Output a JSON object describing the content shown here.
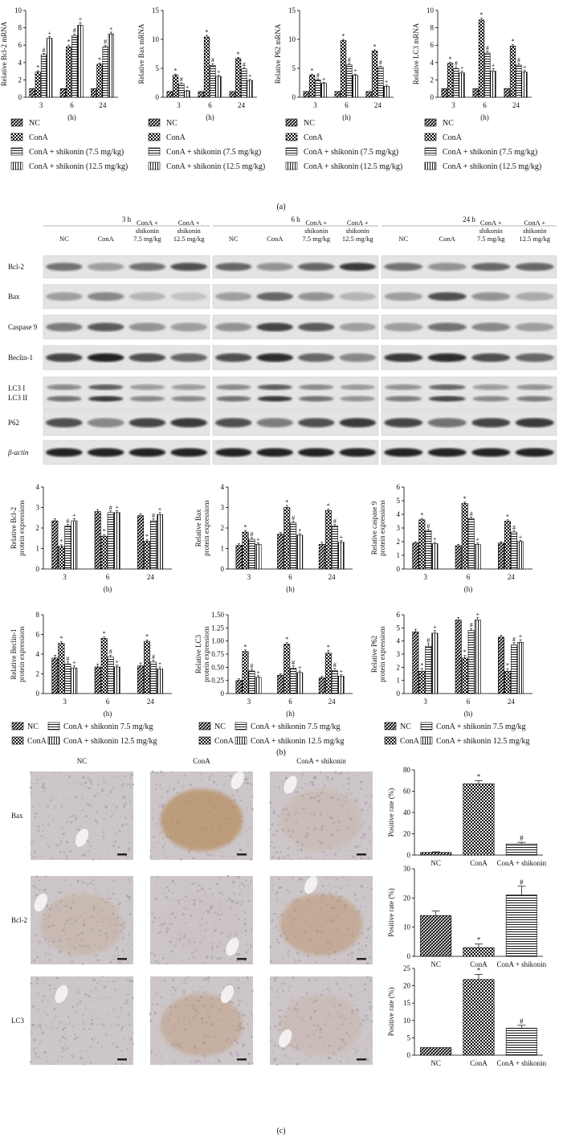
{
  "legend4": [
    "NC",
    "ConA",
    "ConA + shikonin (7.5 mg/kg)",
    "ConA + shikonin (12.5 mg/kg)"
  ],
  "legend4b": [
    "NC",
    "ConA",
    "ConA + shikonin 7.5 mg/kg",
    "ConA + shikonin 12.5 mg/kg"
  ],
  "panel_labels": {
    "a": "(a)",
    "b": "(b)",
    "c": "(c)"
  },
  "western": {
    "time_headers": [
      "3 h",
      "6 h",
      "24 h"
    ],
    "lanes": [
      "NC",
      "ConA",
      "ConA +\nshikonin\n7.5 mg/kg",
      "ConA +\nshikonin\n12.5 mg/kg"
    ],
    "rows": [
      "Bcl-2",
      "Bax",
      "Caspase 9",
      "Beclin-1",
      "LC3 I\nLC3 II",
      "P62",
      "β-actin"
    ]
  },
  "ihc": {
    "columns": [
      "NC",
      "ConA",
      "ConA + shikonin"
    ],
    "rows": [
      "Bax",
      "Bcl-2",
      "LC3"
    ]
  },
  "chart_data": [
    {
      "id": "bcl2_mrna",
      "type": "bar",
      "ylabel": "Relative Bcl-2 mRNA",
      "xlabel": "(h)",
      "categories": [
        "3",
        "6",
        "24"
      ],
      "ylim": [
        0,
        10
      ],
      "yticks": [
        0,
        2,
        4,
        6,
        8,
        10
      ],
      "series": [
        {
          "name": "NC",
          "values": [
            1,
            1,
            1
          ],
          "err": [
            0,
            0,
            0
          ]
        },
        {
          "name": "ConA",
          "values": [
            2.9,
            5.8,
            3.8
          ],
          "err": [
            0.15,
            0.2,
            0.15
          ],
          "sig": "*"
        },
        {
          "name": "ConA + shikonin (7.5 mg/kg)",
          "values": [
            4.9,
            7.1,
            5.8
          ],
          "err": [
            0.15,
            0.2,
            0.2
          ],
          "sig": "#"
        },
        {
          "name": "ConA + shikonin (12.5 mg/kg)",
          "values": [
            6.8,
            8.3,
            7.3
          ],
          "err": [
            0.2,
            0.3,
            0.2
          ],
          "sig": "+"
        }
      ]
    },
    {
      "id": "bax_mrna",
      "type": "bar",
      "ylabel": "Relative Bax mRNA",
      "xlabel": "(h)",
      "categories": [
        "3",
        "6",
        "24"
      ],
      "ylim": [
        0,
        15
      ],
      "yticks": [
        0,
        5,
        10,
        15
      ],
      "series": [
        {
          "name": "NC",
          "values": [
            1,
            1,
            1
          ],
          "err": [
            0,
            0,
            0
          ]
        },
        {
          "name": "ConA",
          "values": [
            3.8,
            10.4,
            6.7
          ],
          "err": [
            0.2,
            0.3,
            0.2
          ],
          "sig": "*"
        },
        {
          "name": "ConA + shikonin (7.5 mg/kg)",
          "values": [
            2.3,
            5.5,
            4.9
          ],
          "err": [
            0.2,
            0.3,
            0.2
          ],
          "sig": "#"
        },
        {
          "name": "ConA + shikonin (12.5 mg/kg)",
          "values": [
            1.1,
            3.6,
            2.9
          ],
          "err": [
            0.1,
            0.2,
            0.2
          ],
          "sig": "+"
        }
      ]
    },
    {
      "id": "p62_mrna",
      "type": "bar",
      "ylabel": "Relative P62 mRNA",
      "xlabel": "(h)",
      "categories": [
        "3",
        "6",
        "24"
      ],
      "ylim": [
        0,
        15
      ],
      "yticks": [
        0,
        5,
        10,
        15
      ],
      "series": [
        {
          "name": "NC",
          "values": [
            1,
            1,
            1
          ],
          "err": [
            0,
            0,
            0
          ]
        },
        {
          "name": "ConA",
          "values": [
            3.8,
            9.8,
            8.0
          ],
          "err": [
            0.2,
            0.2,
            0.2
          ],
          "sig": "*"
        },
        {
          "name": "ConA + shikonin (7.5 mg/kg)",
          "values": [
            3.0,
            5.6,
            5.2
          ],
          "err": [
            0.2,
            0.3,
            0.2
          ],
          "sig": "#"
        },
        {
          "name": "ConA + shikonin (12.5 mg/kg)",
          "values": [
            2.4,
            3.8,
            1.9
          ],
          "err": [
            0.2,
            0.2,
            0.2
          ],
          "sig": "+"
        }
      ]
    },
    {
      "id": "lc3_mrna",
      "type": "bar",
      "ylabel": "Relative LC3 mRNA",
      "xlabel": "(h)",
      "categories": [
        "3",
        "6",
        "24"
      ],
      "ylim": [
        0,
        10
      ],
      "yticks": [
        0,
        2,
        4,
        6,
        8,
        10
      ],
      "series": [
        {
          "name": "NC",
          "values": [
            1,
            1,
            1
          ],
          "err": [
            0,
            0,
            0
          ]
        },
        {
          "name": "ConA",
          "values": [
            3.9,
            8.9,
            5.9
          ],
          "err": [
            0.15,
            0.2,
            0.15
          ],
          "sig": "*"
        },
        {
          "name": "ConA + shikonin (7.5 mg/kg)",
          "values": [
            3.3,
            5.1,
            3.7
          ],
          "err": [
            0.2,
            0.2,
            0.2
          ],
          "sig": "#"
        },
        {
          "name": "ConA + shikonin (12.5 mg/kg)",
          "values": [
            2.8,
            3.0,
            2.9
          ],
          "err": [
            0.2,
            0.3,
            0.2
          ],
          "sig": "+"
        }
      ]
    },
    {
      "id": "bcl2_prot",
      "type": "bar",
      "ylabel": "Relative Bcl-2\nprotein expressions",
      "xlabel": "(h)",
      "categories": [
        "3",
        "6",
        "24"
      ],
      "ylim": [
        0,
        4
      ],
      "yticks": [
        0,
        1,
        2,
        3,
        4
      ],
      "series": [
        {
          "name": "NC",
          "values": [
            2.35,
            2.8,
            2.6
          ],
          "err": [
            0.1,
            0.1,
            0.1
          ]
        },
        {
          "name": "ConA",
          "values": [
            1.1,
            1.6,
            1.35
          ],
          "err": [
            0.08,
            0.08,
            0.08
          ],
          "sig": "*"
        },
        {
          "name": "ConA + shikonin 7.5 mg/kg",
          "values": [
            2.1,
            2.75,
            2.35
          ],
          "err": [
            0.08,
            0.08,
            0.1
          ],
          "sig": "#"
        },
        {
          "name": "ConA + shikonin 12.5 mg/kg",
          "values": [
            2.35,
            2.75,
            2.65
          ],
          "err": [
            0.1,
            0.1,
            0.1
          ],
          "sig": "+"
        }
      ]
    },
    {
      "id": "bax_prot",
      "type": "bar",
      "ylabel": "Relative Bax\nprotein expressions",
      "xlabel": "(h)",
      "categories": [
        "3",
        "6",
        "24"
      ],
      "ylim": [
        0,
        4
      ],
      "yticks": [
        0,
        1,
        2,
        3,
        4
      ],
      "series": [
        {
          "name": "NC",
          "values": [
            1.15,
            1.7,
            1.2
          ],
          "err": [
            0.08,
            0.08,
            0.1
          ]
        },
        {
          "name": "ConA",
          "values": [
            1.8,
            3.0,
            2.85
          ],
          "err": [
            0.08,
            0.1,
            0.08
          ],
          "sig": "*"
        },
        {
          "name": "ConA + shikonin 7.5 mg/kg",
          "values": [
            1.45,
            2.25,
            2.1
          ],
          "err": [
            0.08,
            0.08,
            0.08
          ],
          "sig": "#"
        },
        {
          "name": "ConA + shikonin 12.5 mg/kg",
          "values": [
            1.2,
            1.65,
            1.3
          ],
          "err": [
            0.08,
            0.08,
            0.1
          ],
          "sig": "+"
        }
      ]
    },
    {
      "id": "casp9_prot",
      "type": "bar",
      "ylabel": "Relative caspase 9\nprotein expressions",
      "xlabel": "(h)",
      "categories": [
        "3",
        "6",
        "24"
      ],
      "ylim": [
        0,
        6
      ],
      "yticks": [
        0,
        1,
        2,
        3,
        4,
        5,
        6
      ],
      "series": [
        {
          "name": "NC",
          "values": [
            1.9,
            1.7,
            1.9
          ],
          "err": [
            0.1,
            0.1,
            0.1
          ]
        },
        {
          "name": "ConA",
          "values": [
            3.6,
            4.8,
            3.5
          ],
          "err": [
            0.1,
            0.1,
            0.1
          ],
          "sig": "*"
        },
        {
          "name": "ConA + shikonin 7.5 mg/kg",
          "values": [
            2.8,
            3.7,
            2.7
          ],
          "err": [
            0.1,
            0.1,
            0.1
          ],
          "sig": "#"
        },
        {
          "name": "ConA + shikonin 12.5 mg/kg",
          "values": [
            1.85,
            1.8,
            2.0
          ],
          "err": [
            0.1,
            0.1,
            0.1
          ],
          "sig": "+"
        }
      ]
    },
    {
      "id": "beclin_prot",
      "type": "bar",
      "ylabel": "Relative Beclin-1\nprotein expressions",
      "xlabel": "(h)",
      "categories": [
        "3",
        "6",
        "24"
      ],
      "ylim": [
        0,
        8
      ],
      "yticks": [
        0,
        2,
        4,
        6,
        8
      ],
      "series": [
        {
          "name": "NC",
          "values": [
            3.6,
            2.7,
            2.8
          ],
          "err": [
            0.3,
            0.3,
            0.3
          ]
        },
        {
          "name": "ConA",
          "values": [
            5.1,
            5.6,
            5.3
          ],
          "err": [
            0.15,
            0.15,
            0.15
          ],
          "sig": "*"
        },
        {
          "name": "ConA + shikonin 7.5 mg/kg",
          "values": [
            3.0,
            3.7,
            3.2
          ],
          "err": [
            0.2,
            0.2,
            0.2
          ],
          "sig": "#"
        },
        {
          "name": "ConA + shikonin 12.5 mg/kg",
          "values": [
            2.6,
            2.7,
            2.5
          ],
          "err": [
            0.2,
            0.2,
            0.2
          ],
          "sig": "+"
        }
      ]
    },
    {
      "id": "lc3_prot",
      "type": "bar",
      "ylabel": "Relative LC3\nprotein expressions",
      "xlabel": "(h)",
      "categories": [
        "3",
        "6",
        "24"
      ],
      "ylim": [
        0,
        1.5
      ],
      "yticks": [
        0,
        0.25,
        0.5,
        0.75,
        1.0,
        1.25,
        1.5
      ],
      "ytick_labels": [
        "0",
        "0.25",
        "0.50",
        "0.75",
        "1.00",
        "1.25",
        "1.50"
      ],
      "series": [
        {
          "name": "NC",
          "values": [
            0.25,
            0.35,
            0.3
          ],
          "err": [
            0.03,
            0.03,
            0.03
          ]
        },
        {
          "name": "ConA",
          "values": [
            0.8,
            0.94,
            0.77
          ],
          "err": [
            0.03,
            0.03,
            0.05
          ],
          "sig": "*"
        },
        {
          "name": "ConA + shikonin 7.5 mg/kg",
          "values": [
            0.43,
            0.48,
            0.44
          ],
          "err": [
            0.04,
            0.05,
            0.04
          ],
          "sig": "#"
        },
        {
          "name": "ConA + shikonin 12.5 mg/kg",
          "values": [
            0.31,
            0.4,
            0.33
          ],
          "err": [
            0.03,
            0.03,
            0.03
          ],
          "sig": "+"
        }
      ]
    },
    {
      "id": "p62_prot",
      "type": "bar",
      "ylabel": "Relative P62\nprotein expressions",
      "xlabel": "(h)",
      "categories": [
        "3",
        "6",
        "24"
      ],
      "ylim": [
        0,
        6
      ],
      "yticks": [
        0,
        1,
        2,
        3,
        4,
        5,
        6
      ],
      "series": [
        {
          "name": "NC",
          "values": [
            4.7,
            5.6,
            4.3
          ],
          "err": [
            0.2,
            0.2,
            0.15
          ]
        },
        {
          "name": "ConA",
          "values": [
            1.7,
            2.7,
            1.7
          ],
          "err": [
            0.2,
            0.2,
            0.2
          ],
          "sig": "*"
        },
        {
          "name": "ConA + shikonin 7.5 mg/kg",
          "values": [
            3.6,
            4.8,
            3.7
          ],
          "err": [
            0.2,
            0.15,
            0.2
          ],
          "sig": "#"
        },
        {
          "name": "ConA + shikonin 12.5 mg/kg",
          "values": [
            4.6,
            5.6,
            3.9
          ],
          "err": [
            0.2,
            0.2,
            0.2
          ],
          "sig": "+"
        }
      ]
    },
    {
      "id": "ihc_bax",
      "type": "bar",
      "ylabel": "Positive rate (%)",
      "categories": [
        "NC",
        "ConA",
        "ConA + shikonin"
      ],
      "ylim": [
        0,
        80
      ],
      "yticks": [
        0,
        20,
        40,
        60,
        80
      ],
      "values": [
        2.5,
        67,
        10.5
      ],
      "err": [
        0.5,
        3,
        1.5
      ],
      "sig": [
        "",
        "*",
        "#"
      ]
    },
    {
      "id": "ihc_bcl2",
      "type": "bar",
      "ylabel": "Positive rate (%)",
      "categories": [
        "NC",
        "ConA",
        "ConA + shikonin"
      ],
      "ylim": [
        0,
        30
      ],
      "yticks": [
        0,
        10,
        20,
        30
      ],
      "values": [
        14,
        3,
        21
      ],
      "err": [
        1.5,
        1.2,
        3
      ],
      "sig": [
        "",
        "*",
        "#"
      ]
    },
    {
      "id": "ihc_lc3",
      "type": "bar",
      "ylabel": "Positive rate (%)",
      "categories": [
        "NC",
        "ConA",
        "ConA + shikonin"
      ],
      "ylim": [
        0,
        25
      ],
      "yticks": [
        0,
        5,
        10,
        15,
        20,
        25
      ],
      "values": [
        2.2,
        21.8,
        7.8
      ],
      "err": [
        0,
        1.5,
        0.8
      ],
      "sig": [
        "",
        "*",
        "#"
      ]
    }
  ]
}
